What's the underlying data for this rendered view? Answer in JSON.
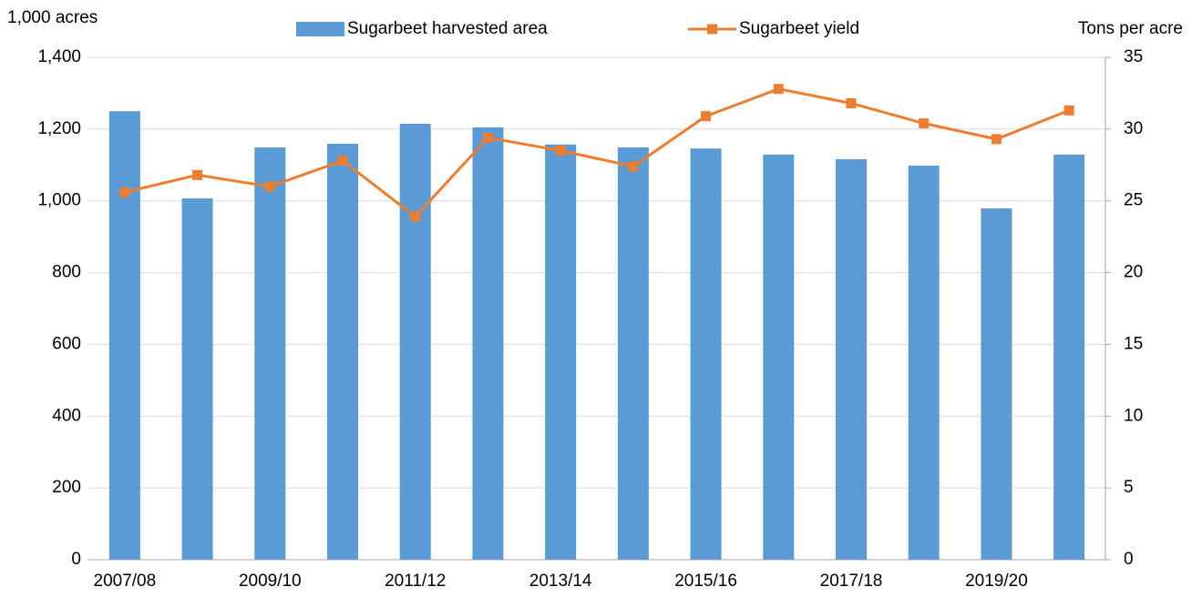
{
  "chart_data": {
    "type": "bar-line",
    "y_label": "1,000 acres",
    "y2_label": "Tons per acre",
    "categories": [
      "2007/08",
      null,
      "2009/10",
      null,
      "2011/12",
      null,
      "2013/14",
      null,
      "2015/16",
      null,
      "2017/18",
      null,
      "2019/20",
      null
    ],
    "series": [
      {
        "name": "Sugarbeet harvested area",
        "type": "bar",
        "color": "#5b9bd5",
        "values": [
          1250,
          1007,
          1149,
          1159,
          1215,
          1205,
          1157,
          1149,
          1146,
          1129,
          1116,
          1098,
          979,
          1129
        ]
      },
      {
        "name": "Sugarbeet yield",
        "type": "line",
        "axis": "y2",
        "color": "#ed7d31",
        "values": [
          25.6,
          26.8,
          26.0,
          27.8,
          23.9,
          29.4,
          28.5,
          27.4,
          30.9,
          32.8,
          31.8,
          30.4,
          29.3,
          31.3
        ]
      }
    ],
    "ylim": [
      0,
      1400
    ],
    "yticks": [
      0,
      200,
      400,
      600,
      800,
      {
        "value": 1000,
        "label": "1,000"
      },
      {
        "value": 1200,
        "label": "1,200"
      },
      {
        "value": 1400,
        "label": "1,400"
      }
    ],
    "y2lim": [
      0,
      35
    ],
    "y2ticks": [
      0,
      5,
      10,
      15,
      20,
      25,
      30,
      35
    ],
    "grid": true,
    "legend": "top"
  }
}
